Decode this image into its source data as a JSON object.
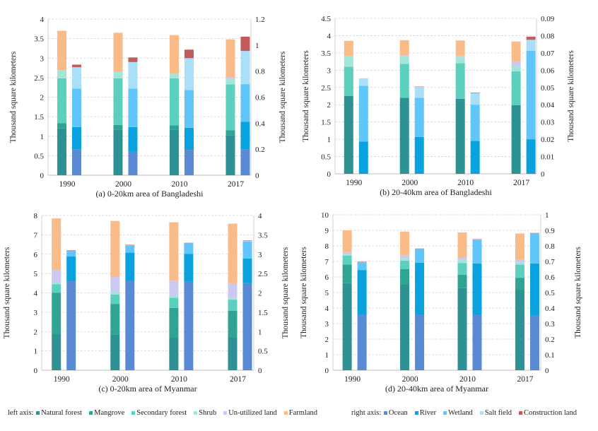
{
  "legend": {
    "left_label": "left axis:",
    "right_label": "right axis:",
    "left_series": [
      {
        "name": "Natural forest",
        "color": "#2e9294"
      },
      {
        "name": "Mangrove",
        "color": "#2fa493"
      },
      {
        "name": "Secondary forest",
        "color": "#5ccfbd"
      },
      {
        "name": "Shrub",
        "color": "#a3e6d8"
      },
      {
        "name": "Un-utilized land",
        "color": "#cbc8f2"
      },
      {
        "name": "Farmland",
        "color": "#f9bc88"
      }
    ],
    "right_series": [
      {
        "name": "Ocean",
        "color": "#5a8ad4"
      },
      {
        "name": "River",
        "color": "#0aa2de"
      },
      {
        "name": "Wetland",
        "color": "#60c5f8"
      },
      {
        "name": "Salt field",
        "color": "#aadffa"
      },
      {
        "name": "Construction land",
        "color": "#c15b5c"
      }
    ]
  },
  "chart_data": [
    {
      "type": "bar",
      "stacked": true,
      "caption": "(a) 0-20km area of Bangladeshi",
      "categories": [
        "1990",
        "2000",
        "2010",
        "2017"
      ],
      "ylabel_left": "Thousand square kilometers",
      "ylabel_right": "Thousand square kilometers",
      "ylim_left": [
        0,
        4
      ],
      "ylim_right": [
        0,
        1.2
      ],
      "yticks_left": [
        "0",
        "0.5",
        "1",
        "1.5",
        "2",
        "2.5",
        "3",
        "3.5",
        "4"
      ],
      "yticks_right": [
        "0",
        "0.2",
        "0.4",
        "0.6",
        "0.8",
        "1",
        "1.2"
      ],
      "grid": true,
      "left_series": [
        {
          "name": "Natural forest",
          "values": [
            1.2,
            1.16,
            1.16,
            1.02
          ]
        },
        {
          "name": "Mangrove",
          "values": [
            0.13,
            0.13,
            0.12,
            0.13
          ]
        },
        {
          "name": "Secondary forest",
          "values": [
            1.15,
            1.19,
            1.2,
            1.18
          ]
        },
        {
          "name": "Shrub",
          "values": [
            0.2,
            0.17,
            0.12,
            0.14
          ]
        },
        {
          "name": "Un-utilized land",
          "values": [
            0.01,
            0.0,
            0.0,
            0.03
          ]
        },
        {
          "name": "Farmland",
          "values": [
            1.01,
            1.0,
            0.99,
            0.98
          ]
        }
      ],
      "right_series": [
        {
          "name": "Ocean",
          "values": [
            0.2,
            0.18,
            0.195,
            0.2
          ]
        },
        {
          "name": "River",
          "values": [
            0.17,
            0.19,
            0.17,
            0.21
          ]
        },
        {
          "name": "Wetland",
          "values": [
            0.295,
            0.295,
            0.29,
            0.29
          ]
        },
        {
          "name": "Salt field",
          "values": [
            0.165,
            0.205,
            0.245,
            0.255
          ]
        },
        {
          "name": "Construction land",
          "values": [
            0.02,
            0.035,
            0.065,
            0.11
          ]
        }
      ]
    },
    {
      "type": "bar",
      "stacked": true,
      "caption": "(b) 20-40km area of Bangladeshi",
      "categories": [
        "1990",
        "2000",
        "2010",
        "2017"
      ],
      "ylabel_left": "Thousand square kilometers",
      "ylabel_right": "Thousand square kilometers",
      "ylim_left": [
        0,
        4.5
      ],
      "ylim_right": [
        0,
        0.09
      ],
      "yticks_left": [
        "0",
        "0.5",
        "1",
        "1.5",
        "2",
        "2.5",
        "3",
        "3.5",
        "4",
        "4.5"
      ],
      "yticks_right": [
        "0",
        "0.01",
        "0.02",
        "0.03",
        "0.04",
        "0.05",
        "0.06",
        "0.07",
        "0.08",
        "0.09"
      ],
      "grid": true,
      "left_series": [
        {
          "name": "Natural forest",
          "values": [
            2.25,
            2.2,
            2.17,
            1.99
          ]
        },
        {
          "name": "Mangrove",
          "values": [
            0,
            0,
            0,
            0
          ]
        },
        {
          "name": "Secondary forest",
          "values": [
            0.85,
            0.98,
            1.03,
            0.98
          ]
        },
        {
          "name": "Shrub",
          "values": [
            0.32,
            0.22,
            0.19,
            0.16
          ]
        },
        {
          "name": "Un-utilized land",
          "values": [
            0.0,
            0.03,
            0.03,
            0.12
          ]
        },
        {
          "name": "Farmland",
          "values": [
            0.43,
            0.44,
            0.44,
            0.58
          ]
        }
      ],
      "right_series": [
        {
          "name": "Ocean",
          "values": [
            0,
            0,
            0,
            0
          ]
        },
        {
          "name": "River",
          "values": [
            0.0186,
            0.0213,
            0.019,
            0.02
          ]
        },
        {
          "name": "Wetland",
          "values": [
            0.0324,
            0.0227,
            0.021,
            0.0512
          ]
        },
        {
          "name": "Salt field",
          "values": [
            0.0043,
            0.0063,
            0.0067,
            0.0064
          ]
        },
        {
          "name": "Construction land",
          "values": [
            0.0,
            0.0002,
            0.0003,
            0.0018
          ]
        }
      ]
    },
    {
      "type": "bar",
      "stacked": true,
      "caption": "(c) 0-20km area of Myanmar",
      "categories": [
        "1990",
        "2000",
        "2010",
        "2017"
      ],
      "ylabel_left": "Thousand square kilometers",
      "ylabel_right": "Thousand square kilometers",
      "ylim_left": [
        0,
        8
      ],
      "ylim_right": [
        0,
        4
      ],
      "yticks_left": [
        "0",
        "1",
        "2",
        "3",
        "4",
        "5",
        "6",
        "7",
        "8"
      ],
      "yticks_right": [
        "0",
        "0.5",
        "1",
        "1.5",
        "2",
        "2.5",
        "3",
        "3.5",
        "4"
      ],
      "grid": true,
      "left_series": [
        {
          "name": "Natural forest",
          "values": [
            1.88,
            1.85,
            1.7,
            1.7
          ]
        },
        {
          "name": "Mangrove",
          "values": [
            2.12,
            1.58,
            1.52,
            1.38
          ]
        },
        {
          "name": "Secondary forest",
          "values": [
            0.45,
            0.49,
            0.53,
            0.57
          ]
        },
        {
          "name": "Shrub",
          "values": [
            0.1,
            0.1,
            0.1,
            0.07
          ]
        },
        {
          "name": "Un-utilized land",
          "values": [
            0.63,
            0.8,
            0.78,
            0.75
          ]
        },
        {
          "name": "Farmland",
          "values": [
            2.67,
            2.9,
            3.02,
            3.11
          ]
        }
      ],
      "right_series": [
        {
          "name": "Ocean",
          "values": [
            2.3,
            2.3,
            2.29,
            2.25
          ]
        },
        {
          "name": "River",
          "values": [
            0.64,
            0.74,
            0.72,
            0.64
          ]
        },
        {
          "name": "Wetland",
          "values": [
            0.15,
            0.19,
            0.27,
            0.44
          ]
        },
        {
          "name": "Salt field",
          "values": [
            0.01,
            0.01,
            0.01,
            0.02
          ]
        },
        {
          "name": "Construction land",
          "values": [
            0.005,
            0.003,
            0.003,
            0.01
          ]
        }
      ]
    },
    {
      "type": "bar",
      "stacked": true,
      "caption": "(d) 20-40km area of Myanmar",
      "categories": [
        "1990",
        "2000",
        "2010",
        "2017"
      ],
      "ylabel_left": "Thousand square kilometers",
      "ylabel_right": "Thousand square kilometers",
      "ylim_left": [
        0,
        10
      ],
      "ylim_right": [
        0,
        1
      ],
      "yticks_left": [
        "0",
        "1",
        "2",
        "3",
        "4",
        "5",
        "6",
        "7",
        "8",
        "9",
        "10"
      ],
      "yticks_right": [
        "0",
        "0.1",
        "0.2",
        "0.3",
        "0.4",
        "0.5",
        "0.6",
        "0.7",
        "0.8",
        "0.9",
        "1"
      ],
      "grid": true,
      "left_series": [
        {
          "name": "Natural forest",
          "values": [
            5.6,
            5.5,
            5.28,
            5.18
          ]
        },
        {
          "name": "Mangrove",
          "values": [
            1.2,
            1.0,
            0.87,
            0.77
          ]
        },
        {
          "name": "Secondary forest",
          "values": [
            0.58,
            0.55,
            0.75,
            0.85
          ]
        },
        {
          "name": "Shrub",
          "values": [
            0.07,
            0.15,
            0.2,
            0.15
          ]
        },
        {
          "name": "Un-utilized land",
          "values": [
            0.15,
            0.2,
            0.15,
            0.17
          ]
        },
        {
          "name": "Farmland",
          "values": [
            1.4,
            1.52,
            1.62,
            1.68
          ]
        }
      ],
      "right_series": [
        {
          "name": "Ocean",
          "values": [
            0.357,
            0.355,
            0.355,
            0.352
          ]
        },
        {
          "name": "River",
          "values": [
            0.288,
            0.337,
            0.332,
            0.335
          ]
        },
        {
          "name": "Wetland",
          "values": [
            0.05,
            0.088,
            0.153,
            0.193
          ]
        },
        {
          "name": "Salt field",
          "values": [
            0.002,
            0.002,
            0.002,
            0.002
          ]
        },
        {
          "name": "Construction land",
          "values": [
            0.001,
            0.001,
            0.001,
            0.001
          ]
        }
      ]
    }
  ]
}
